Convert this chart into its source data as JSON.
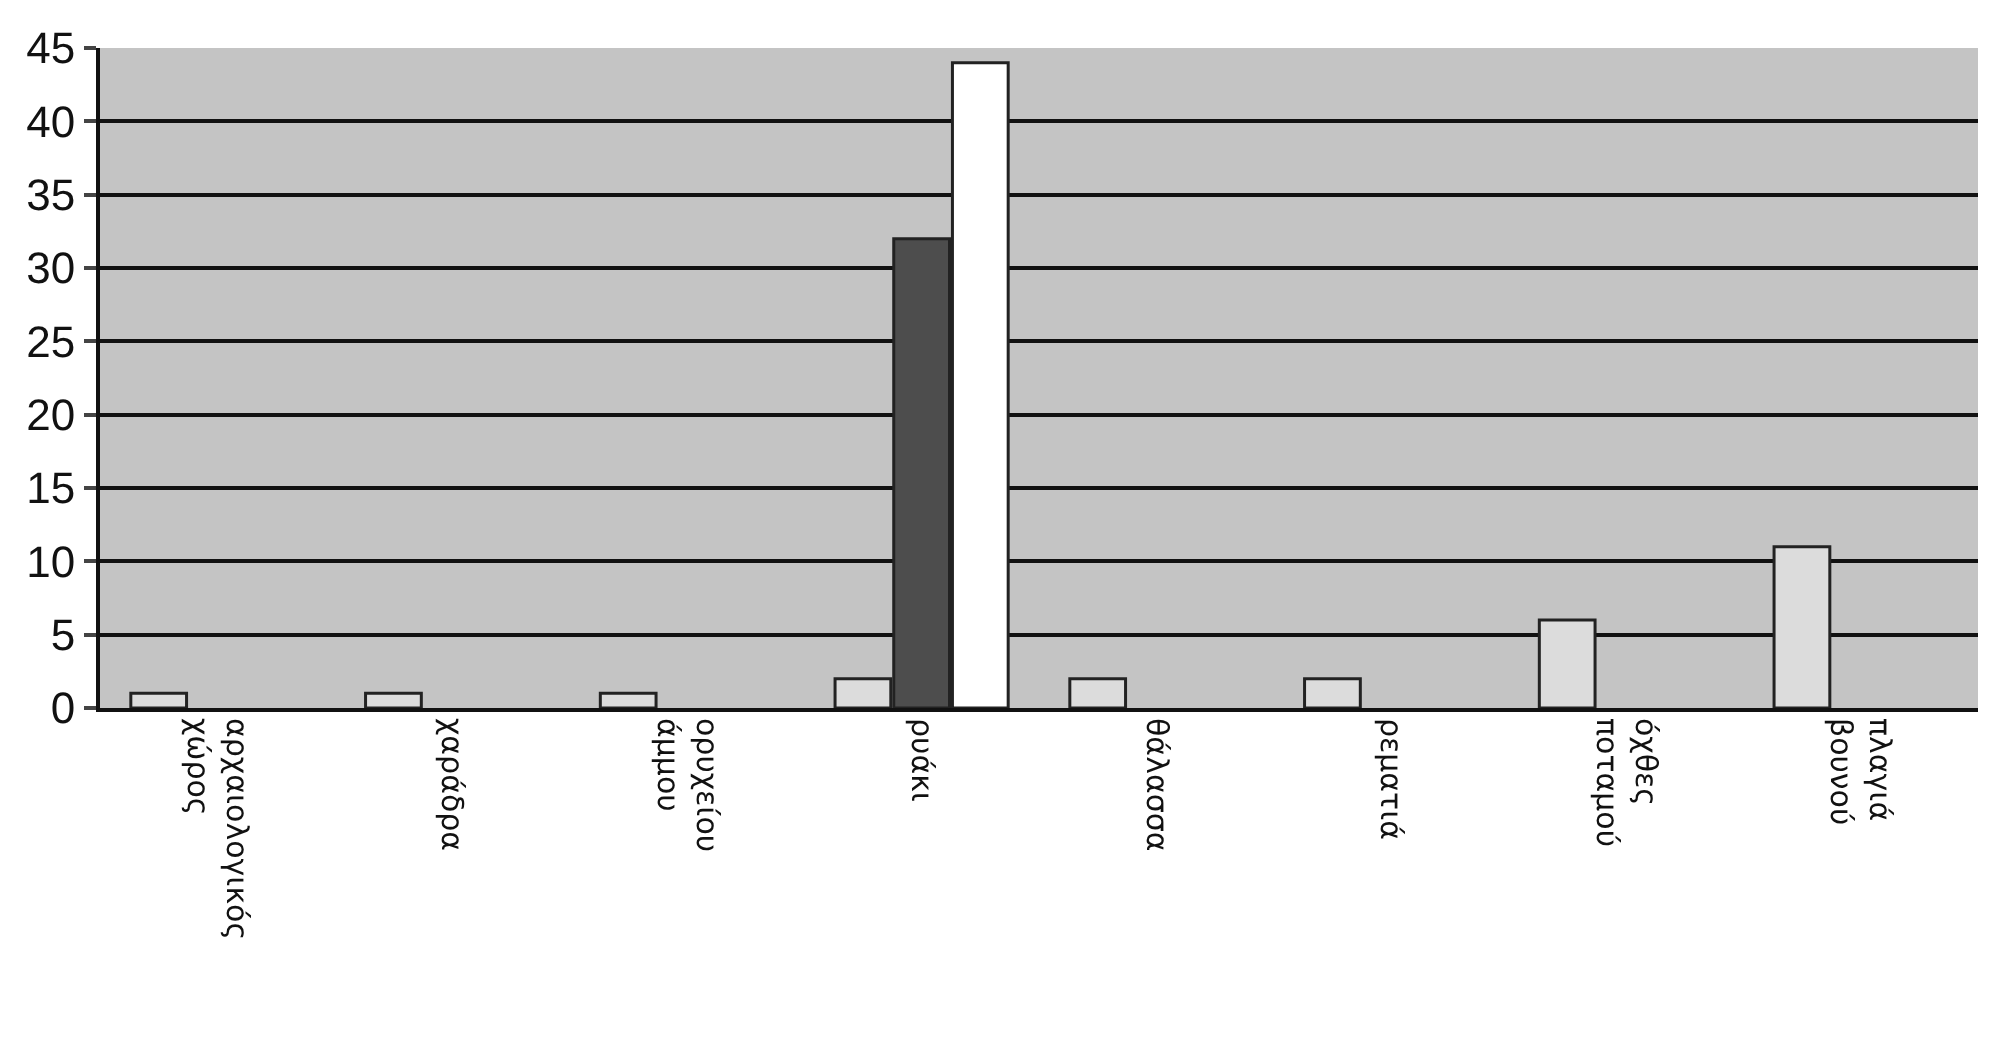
{
  "chart_data": {
    "type": "bar",
    "categories": [
      "αρχαιολογικός χώρος",
      "χαράδρα",
      "ορυχείου άμμου",
      "ρυάκι",
      "θάλασσα",
      "ρεματιά",
      "όχθες ποταμού",
      "πλαγιά βουνού"
    ],
    "series": [
      {
        "color": "#dcdcdc",
        "values": [
          1,
          1,
          1,
          2,
          2,
          2,
          6,
          11
        ]
      },
      {
        "color": "#4d4d4d",
        "values": [
          null,
          null,
          null,
          32,
          null,
          null,
          null,
          null
        ]
      },
      {
        "color": "#ffffff",
        "values": [
          null,
          null,
          null,
          44,
          null,
          null,
          null,
          null
        ]
      }
    ],
    "ylim": [
      0,
      45
    ],
    "yticks": [
      0,
      5,
      10,
      15,
      20,
      25,
      30,
      35,
      40,
      45
    ],
    "grid": "y"
  }
}
